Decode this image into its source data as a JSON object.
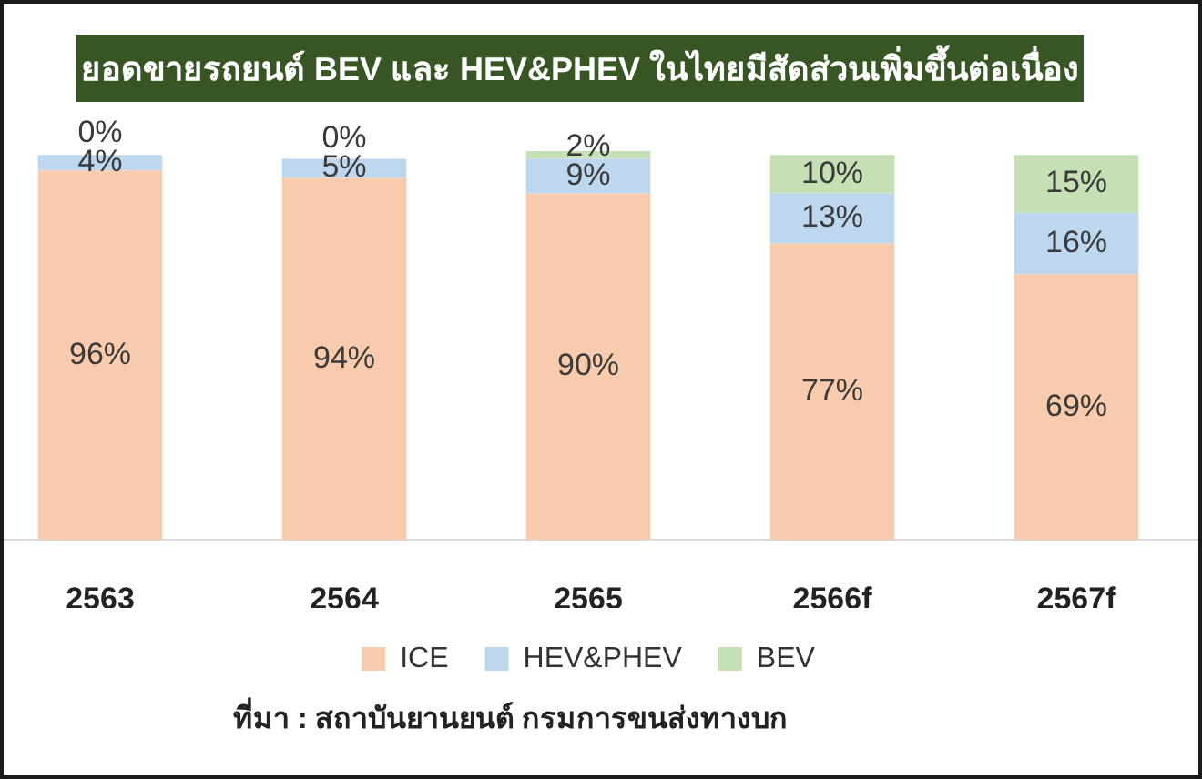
{
  "chart_data": {
    "type": "bar",
    "title": "ยอดขายรถยนต์ BEV และ HEV&PHEV ในไทยมีสัดส่วนเพิ่มขึ้นต่อเนื่อง",
    "categories": [
      "2563",
      "2564",
      "2565",
      "2566f",
      "2567f"
    ],
    "stacked": true,
    "series": [
      {
        "name": "ICE",
        "color": "#f8cbad",
        "values": [
          96,
          94,
          90,
          77,
          69
        ],
        "value_labels": [
          "96%",
          "94%",
          "90%",
          "77%",
          "69%"
        ]
      },
      {
        "name": "HEV&PHEV",
        "color": "#bdd7ee",
        "values": [
          4,
          5,
          9,
          13,
          16
        ],
        "value_labels": [
          "4%",
          "5%",
          "9%",
          "13%",
          "16%"
        ]
      },
      {
        "name": "BEV",
        "color": "#c5e0b4",
        "values": [
          0,
          0,
          2,
          10,
          15
        ],
        "value_labels": [
          "0%",
          "0%",
          "2%",
          "10%",
          "15%"
        ]
      }
    ],
    "legend": "bottom",
    "grid": false,
    "tick_labels": "x",
    "annotations": [
      "ที่มา : สถาบันยานยนต์ กรมการขนส่งทางบก"
    ]
  }
}
